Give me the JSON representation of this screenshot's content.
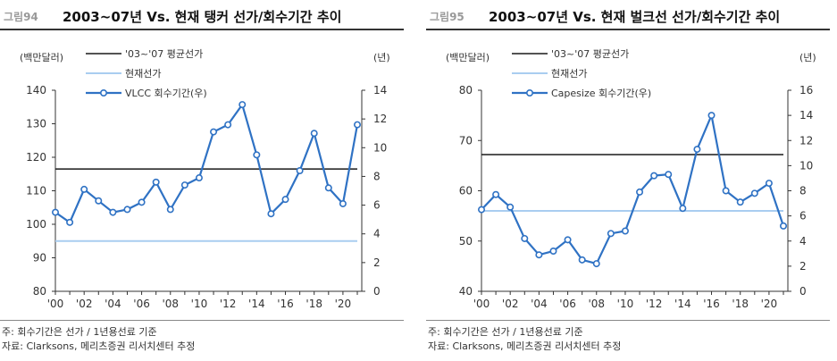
{
  "figures": [
    {
      "figure_no": "그림94",
      "title": "2003~07년 Vs. 현재 탱커 선가/회수기간 추이",
      "note": "주: 회수기간은 선가 / 1년용선료 기준",
      "source": "자료: Clarksons, 메리츠증권 리서치센터 추정"
    },
    {
      "figure_no": "그림95",
      "title": "2003~07년 Vs. 현재 벌크선 선가/회수기간 추이",
      "note": "주: 회수기간은 선가 / 1년용선료 기준",
      "source": "자료: Clarksons, 메리츠증권 리서치센터 추정"
    }
  ],
  "colors": {
    "avg_line": "#1a1a1a",
    "current_line": "#a9cdf0",
    "series": "#2f72c4"
  },
  "chart_data": [
    {
      "type": "line",
      "left_unit": "(백만달러)",
      "right_unit": "(년)",
      "x_tick_labels": [
        "'00",
        "'02",
        "'04",
        "'06",
        "'08",
        "'10",
        "'12",
        "'14",
        "'16",
        "'18",
        "'20"
      ],
      "x": [
        2000,
        2001,
        2002,
        2003,
        2004,
        2005,
        2006,
        2007,
        2008,
        2009,
        2010,
        2011,
        2012,
        2013,
        2014,
        2015,
        2016,
        2017,
        2018,
        2019,
        2020,
        2021
      ],
      "ylim_left": [
        80,
        140
      ],
      "yticks_left": [
        80,
        90,
        100,
        110,
        120,
        130,
        140
      ],
      "ylim_right": [
        0,
        14
      ],
      "yticks_right": [
        0,
        2,
        4,
        6,
        8,
        10,
        12,
        14
      ],
      "legend": [
        "'03~'07 평균선가",
        "현재선가",
        "VLCC 회수기간(우)"
      ],
      "avg_price": 116.5,
      "avg_x_range": [
        2000,
        2021
      ],
      "current_price": 95,
      "current_x_range": [
        2000,
        2021
      ],
      "series_axis": "right",
      "series_values": [
        5.5,
        4.8,
        7.1,
        6.3,
        5.5,
        5.7,
        6.2,
        7.6,
        5.7,
        7.4,
        7.9,
        11.1,
        11.6,
        13.0,
        9.5,
        5.4,
        6.4,
        8.4,
        11.0,
        7.2,
        6.1,
        11.6
      ]
    },
    {
      "type": "line",
      "left_unit": "(백만달러)",
      "right_unit": "(년)",
      "x_tick_labels": [
        "'00",
        "'02",
        "'04",
        "'06",
        "'08",
        "'10",
        "'12",
        "'14",
        "'16",
        "'18",
        "'20"
      ],
      "x": [
        2000,
        2001,
        2002,
        2003,
        2004,
        2005,
        2006,
        2007,
        2008,
        2009,
        2010,
        2011,
        2012,
        2013,
        2014,
        2015,
        2016,
        2017,
        2018,
        2019,
        2020,
        2021
      ],
      "ylim_left": [
        40,
        80
      ],
      "yticks_left": [
        40,
        50,
        60,
        70,
        80
      ],
      "ylim_right": [
        0,
        16
      ],
      "yticks_right": [
        0,
        2,
        4,
        6,
        8,
        10,
        12,
        14,
        16
      ],
      "legend": [
        "'03~'07 평균선가",
        "현재선가",
        "Capesize 회수기간(우)"
      ],
      "avg_price": 67.2,
      "avg_x_range": [
        2000,
        2021
      ],
      "current_price": 56,
      "current_x_range": [
        2000,
        2021
      ],
      "series_axis": "right",
      "series_values": [
        6.5,
        7.7,
        6.7,
        4.2,
        2.9,
        3.2,
        4.1,
        2.5,
        2.2,
        4.6,
        4.8,
        7.9,
        9.2,
        9.3,
        6.6,
        11.3,
        14.0,
        8.0,
        7.1,
        7.8,
        8.6,
        5.2
      ]
    }
  ]
}
